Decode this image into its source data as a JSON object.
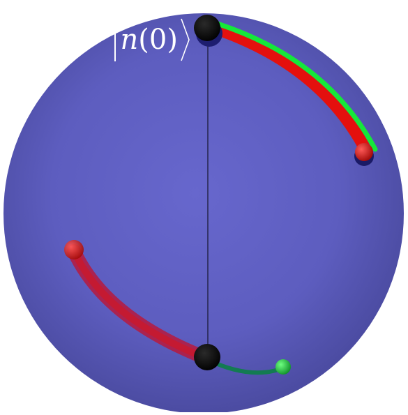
{
  "diagram": {
    "label": {
      "symbol": "n",
      "argument": "(0)"
    },
    "colors": {
      "sphere_center": "#6362c8",
      "sphere_edge": "#4a4aa0",
      "red_path": "#e4100e",
      "green_path": "#15e83a",
      "dark_green_path": "#137b52",
      "marker": "#000000",
      "label_text": "#ffffff"
    },
    "icons": {
      "label_bracket_left": "vertical-bar",
      "label_bracket_right": "right-angle-bracket"
    }
  }
}
